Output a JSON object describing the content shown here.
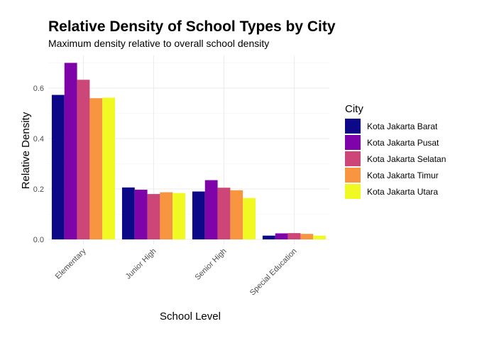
{
  "chart_data": {
    "type": "bar",
    "title": "Relative Density of School Types by City",
    "subtitle": "Maximum density relative to overall school density",
    "xlabel": "School Level",
    "ylabel": "Relative Density",
    "categories": [
      "Elementary",
      "Junior High",
      "Senior High",
      "Special Education"
    ],
    "ylim": [
      0,
      0.72
    ],
    "yticks": [
      "0.0",
      "0.2",
      "0.4",
      "0.6"
    ],
    "ytick_values": [
      0,
      0.2,
      0.4,
      0.6
    ],
    "grid": true,
    "legend": {
      "title": "City",
      "position": "right"
    },
    "series": [
      {
        "name": "Kota Jakarta Barat",
        "color": "#0d0887",
        "values": [
          0.573,
          0.206,
          0.19,
          0.015
        ]
      },
      {
        "name": "Kota Jakarta Pusat",
        "color": "#7e03a8",
        "values": [
          0.7,
          0.197,
          0.235,
          0.024
        ]
      },
      {
        "name": "Kota Jakarta Selatan",
        "color": "#cc4778",
        "values": [
          0.633,
          0.18,
          0.205,
          0.025
        ]
      },
      {
        "name": "Kota Jakarta Timur",
        "color": "#f89540",
        "values": [
          0.56,
          0.187,
          0.195,
          0.022
        ]
      },
      {
        "name": "Kota Jakarta Utara",
        "color": "#f0f921",
        "values": [
          0.562,
          0.184,
          0.164,
          0.015
        ]
      }
    ]
  }
}
